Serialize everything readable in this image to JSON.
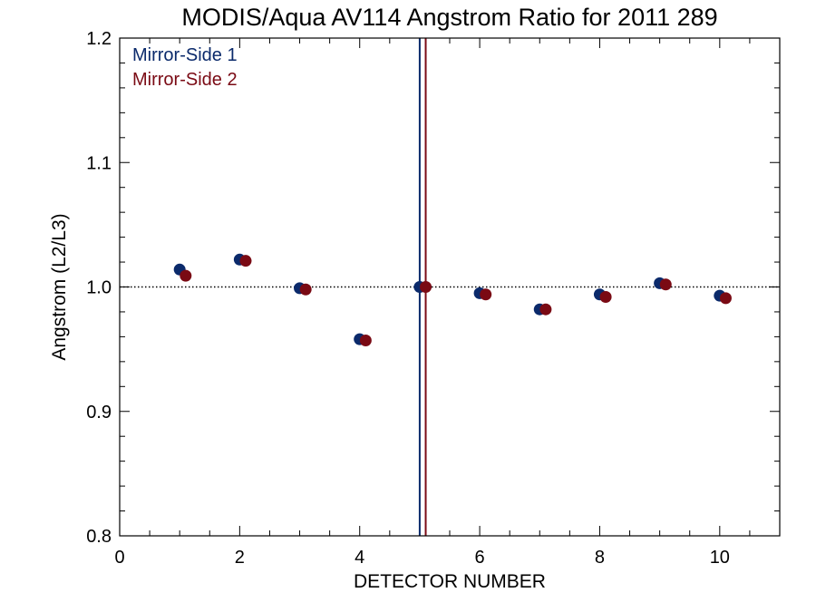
{
  "chart_data": {
    "type": "scatter",
    "title": "MODIS/Aqua AV114 Angstrom Ratio for 2011 289",
    "xlabel": "DETECTOR NUMBER",
    "ylabel": "Angstrom (L2/L3)",
    "xlim": [
      0,
      11
    ],
    "ylim": [
      0.8,
      1.2
    ],
    "x_ticks": [
      "0",
      "2",
      "4",
      "6",
      "8",
      "10"
    ],
    "y_ticks": [
      "0.8",
      "0.9",
      "1.0",
      "1.1",
      "1.2"
    ],
    "reference_line_y": 1.0,
    "legend_position": "top-left",
    "vertical_lines": [
      {
        "x": 5.0,
        "color": "#0b2a6b"
      },
      {
        "x": 5.1,
        "color": "#7a0a14"
      }
    ],
    "series": [
      {
        "name": "Mirror-Side 1",
        "color": "#0b2a6b",
        "x": [
          1,
          2,
          3,
          4,
          5,
          6,
          7,
          8,
          9,
          10
        ],
        "y": [
          1.014,
          1.022,
          0.999,
          0.958,
          1.0,
          0.995,
          0.982,
          0.994,
          1.003,
          0.993
        ]
      },
      {
        "name": "Mirror-Side 2",
        "color": "#7a0a14",
        "x": [
          1.1,
          2.1,
          3.1,
          4.1,
          5.1,
          6.1,
          7.1,
          8.1,
          9.1,
          10.1
        ],
        "y": [
          1.009,
          1.021,
          0.998,
          0.957,
          1.0,
          0.994,
          0.982,
          0.992,
          1.002,
          0.991
        ]
      }
    ]
  }
}
